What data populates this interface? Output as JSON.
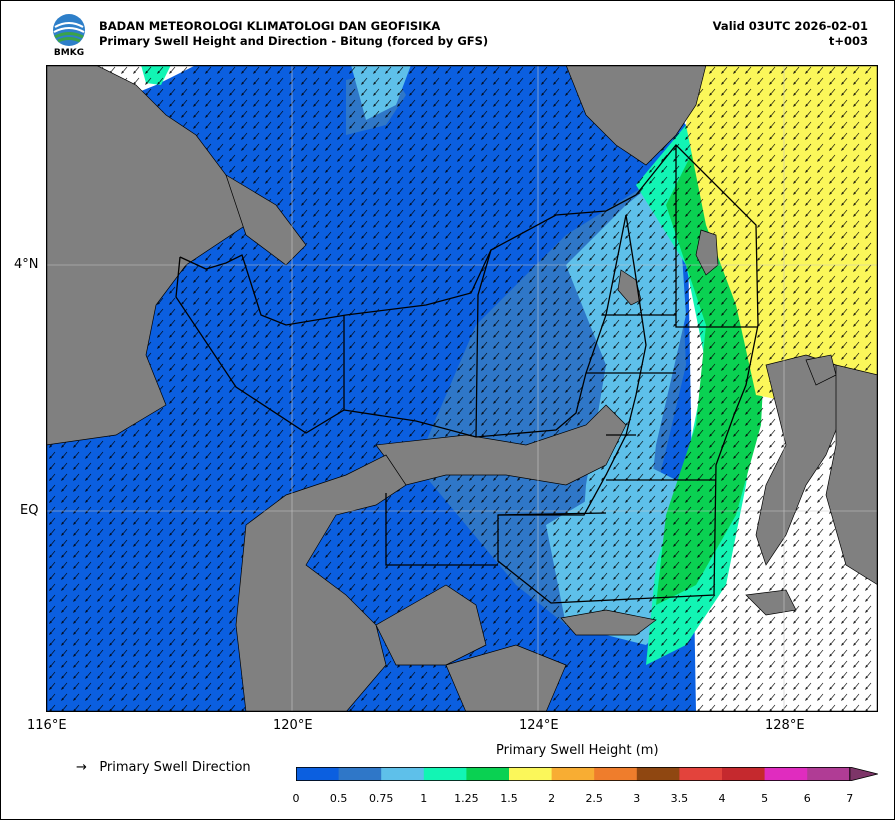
{
  "header": {
    "org": "BADAN METEOROLOGI KLIMATOLOGI DAN GEOFISIKA",
    "product": "Primary Swell Height and Direction - Bitung (forced by GFS)",
    "valid": "Valid 03UTC 2026-02-01",
    "lead": "t+003",
    "logo_text": "BMKG"
  },
  "map": {
    "lon_range": [
      116,
      129.6
    ],
    "lat_range": [
      -2.6,
      6.1
    ],
    "lon_ticks": [
      "116°E",
      "120°E",
      "124°E",
      "128°E"
    ],
    "lat_ticks": [
      "4°N",
      "EQ"
    ],
    "land_color": "#808080",
    "sea_nodata_color": "#ffffff",
    "grid": true
  },
  "legend": {
    "arrow_symbol": "→",
    "direction_label": "Primary Swell Direction"
  },
  "colorbar": {
    "title": "Primary Swell Height (m)",
    "ticks": [
      "0",
      "0.5",
      "0.75",
      "1",
      "1.25",
      "1.5",
      "2",
      "2.5",
      "3",
      "3.5",
      "4",
      "5",
      "6",
      "7"
    ],
    "colors": [
      "#0b5fe0",
      "#2f77c8",
      "#5ec0ea",
      "#12f5b4",
      "#0ad152",
      "#fbf75a",
      "#f8ad33",
      "#ef7d2c",
      "#8f4711",
      "#e3433c",
      "#c5292e",
      "#e02cbf",
      "#b03c95",
      "#7d3568"
    ],
    "extend": "max"
  }
}
